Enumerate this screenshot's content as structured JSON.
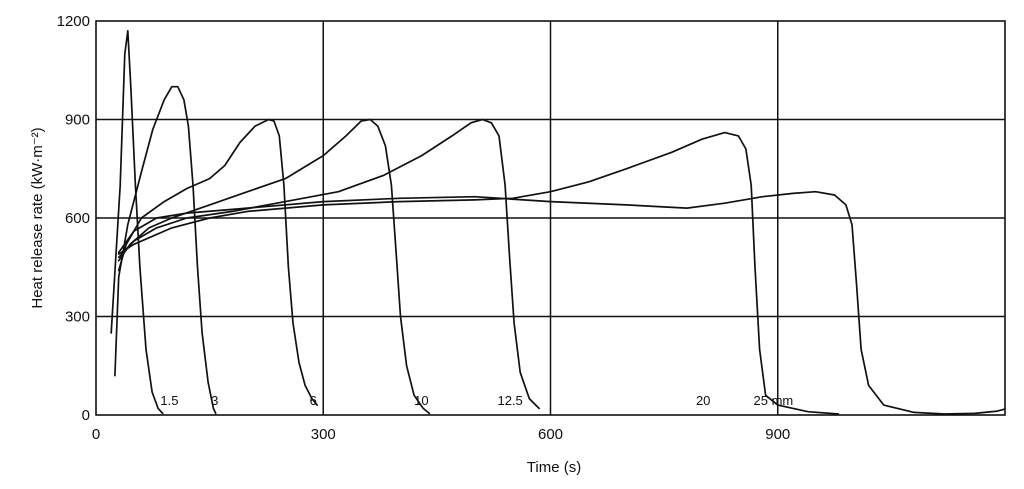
{
  "chart_data": {
    "type": "line",
    "title": "",
    "xlabel": "Time (s)",
    "ylabel": "Heat release rate (kW·m⁻²)",
    "xlim": [
      0,
      1200
    ],
    "ylim": [
      0,
      1200
    ],
    "xticks": [
      0,
      300,
      600,
      900
    ],
    "yticks": [
      0,
      300,
      600,
      900,
      1200
    ],
    "grid": true,
    "series": [
      {
        "name": "1.5",
        "label_at": [
          85,
          30
        ],
        "points": [
          [
            20,
            250
          ],
          [
            32,
            700
          ],
          [
            38,
            1100
          ],
          [
            42,
            1170
          ],
          [
            46,
            1000
          ],
          [
            52,
            700
          ],
          [
            58,
            450
          ],
          [
            66,
            200
          ],
          [
            74,
            70
          ],
          [
            82,
            20
          ],
          [
            88,
            5
          ]
        ]
      },
      {
        "name": "3",
        "label_at": [
          152,
          30
        ],
        "points": [
          [
            25,
            120
          ],
          [
            30,
            420
          ],
          [
            42,
            580
          ],
          [
            60,
            740
          ],
          [
            75,
            870
          ],
          [
            90,
            960
          ],
          [
            100,
            1000
          ],
          [
            108,
            1000
          ],
          [
            116,
            960
          ],
          [
            122,
            880
          ],
          [
            128,
            700
          ],
          [
            134,
            450
          ],
          [
            140,
            250
          ],
          [
            148,
            100
          ],
          [
            155,
            20
          ],
          [
            158,
            5
          ]
        ]
      },
      {
        "name": "6",
        "label_at": [
          282,
          30
        ],
        "points": [
          [
            30,
            440
          ],
          [
            40,
            520
          ],
          [
            60,
            600
          ],
          [
            90,
            650
          ],
          [
            120,
            690
          ],
          [
            150,
            720
          ],
          [
            170,
            760
          ],
          [
            190,
            830
          ],
          [
            210,
            880
          ],
          [
            228,
            900
          ],
          [
            235,
            895
          ],
          [
            242,
            850
          ],
          [
            248,
            700
          ],
          [
            254,
            450
          ],
          [
            260,
            280
          ],
          [
            268,
            160
          ],
          [
            276,
            90
          ],
          [
            285,
            50
          ],
          [
            292,
            30
          ]
        ]
      },
      {
        "name": "10",
        "label_at": [
          420,
          30
        ],
        "points": [
          [
            30,
            470
          ],
          [
            45,
            520
          ],
          [
            70,
            570
          ],
          [
            100,
            600
          ],
          [
            150,
            640
          ],
          [
            200,
            680
          ],
          [
            250,
            720
          ],
          [
            300,
            790
          ],
          [
            330,
            850
          ],
          [
            350,
            895
          ],
          [
            362,
            900
          ],
          [
            372,
            880
          ],
          [
            382,
            820
          ],
          [
            390,
            700
          ],
          [
            396,
            500
          ],
          [
            402,
            300
          ],
          [
            410,
            150
          ],
          [
            420,
            60
          ],
          [
            432,
            20
          ],
          [
            440,
            5
          ]
        ]
      },
      {
        "name": "12.5",
        "label_at": [
          530,
          30
        ],
        "points": [
          [
            30,
            480
          ],
          [
            50,
            530
          ],
          [
            80,
            570
          ],
          [
            120,
            600
          ],
          [
            180,
            620
          ],
          [
            250,
            650
          ],
          [
            320,
            680
          ],
          [
            380,
            730
          ],
          [
            430,
            790
          ],
          [
            470,
            850
          ],
          [
            495,
            890
          ],
          [
            510,
            900
          ],
          [
            522,
            890
          ],
          [
            532,
            850
          ],
          [
            540,
            700
          ],
          [
            546,
            480
          ],
          [
            552,
            280
          ],
          [
            560,
            130
          ],
          [
            572,
            50
          ],
          [
            585,
            20
          ]
        ]
      },
      {
        "name": "20",
        "label_at": [
          792,
          30
        ],
        "points": [
          [
            30,
            490
          ],
          [
            50,
            520
          ],
          [
            100,
            570
          ],
          [
            150,
            600
          ],
          [
            200,
            620
          ],
          [
            300,
            640
          ],
          [
            400,
            650
          ],
          [
            500,
            655
          ],
          [
            550,
            660
          ],
          [
            600,
            680
          ],
          [
            650,
            710
          ],
          [
            700,
            750
          ],
          [
            760,
            800
          ],
          [
            800,
            840
          ],
          [
            830,
            860
          ],
          [
            848,
            850
          ],
          [
            858,
            810
          ],
          [
            865,
            700
          ],
          [
            870,
            450
          ],
          [
            876,
            200
          ],
          [
            884,
            60
          ],
          [
            900,
            30
          ],
          [
            940,
            10
          ],
          [
            980,
            3
          ]
        ]
      },
      {
        "name": "25 mm",
        "label_at": [
          868,
          30
        ],
        "points": [
          [
            30,
            495
          ],
          [
            50,
            560
          ],
          [
            80,
            600
          ],
          [
            120,
            615
          ],
          [
            200,
            630
          ],
          [
            300,
            650
          ],
          [
            400,
            660
          ],
          [
            500,
            665
          ],
          [
            600,
            650
          ],
          [
            700,
            640
          ],
          [
            780,
            630
          ],
          [
            830,
            645
          ],
          [
            880,
            665
          ],
          [
            920,
            675
          ],
          [
            950,
            680
          ],
          [
            975,
            670
          ],
          [
            990,
            640
          ],
          [
            998,
            580
          ],
          [
            1004,
            400
          ],
          [
            1010,
            200
          ],
          [
            1020,
            90
          ],
          [
            1040,
            30
          ],
          [
            1080,
            8
          ],
          [
            1120,
            3
          ],
          [
            1160,
            5
          ],
          [
            1190,
            12
          ],
          [
            1200,
            18
          ]
        ]
      }
    ]
  }
}
